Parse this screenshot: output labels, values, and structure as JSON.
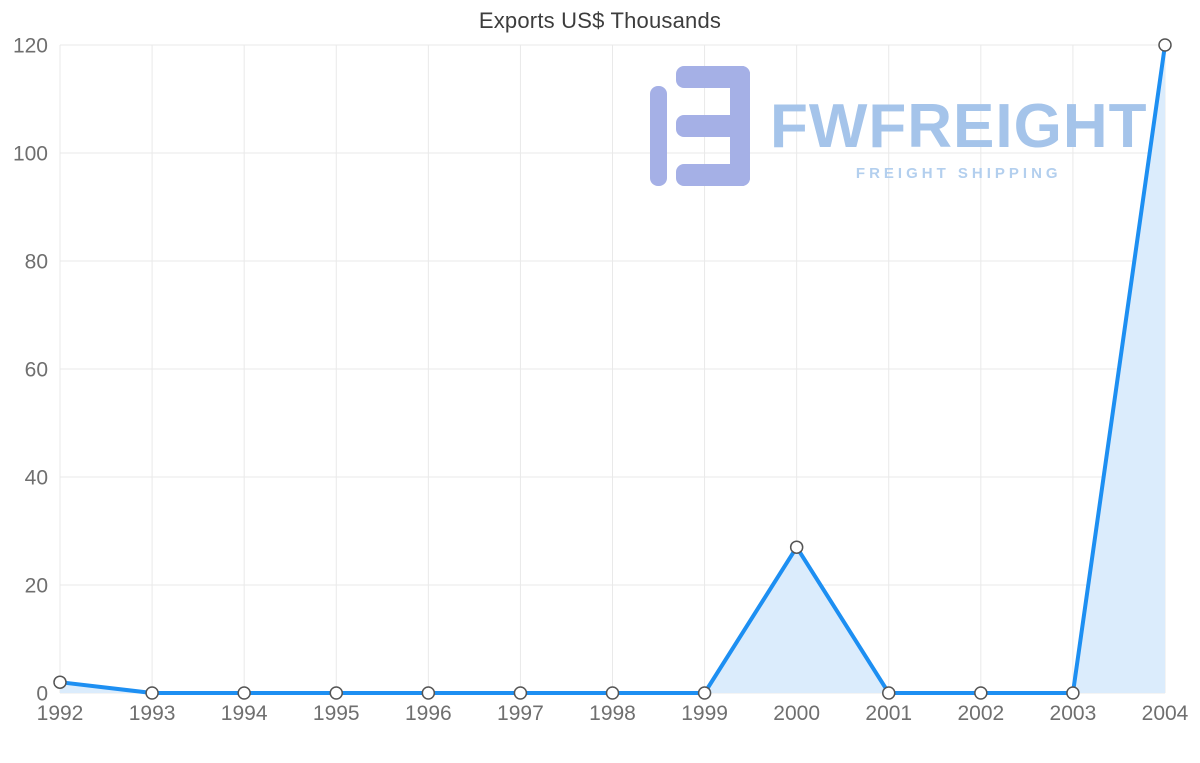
{
  "chart_data": {
    "type": "line",
    "title": "Exports US$ Thousands",
    "categories": [
      "1992",
      "1993",
      "1994",
      "1995",
      "1996",
      "1997",
      "1998",
      "1999",
      "2000",
      "2001",
      "2002",
      "2003",
      "2004"
    ],
    "series": [
      {
        "name": "Exports US$ Thousands",
        "values": [
          2,
          0,
          0,
          0,
          0,
          0,
          0,
          0,
          27,
          0,
          0,
          0,
          120
        ]
      }
    ],
    "xlabel": "",
    "ylabel": "",
    "ylim": [
      0,
      120
    ],
    "ytick_step": 20,
    "yticks": [
      0,
      20,
      40,
      60,
      80,
      100,
      120
    ],
    "grid": "on",
    "legend": "none",
    "line_color": "#1d8ff2",
    "area_color": "#dbecfc",
    "marker_fill": "#ffffff",
    "marker_stroke": "#555555",
    "grid_color": "#e9e9e9",
    "tick_label_color": "#6f6f6f",
    "title_color": "#3d3d3d"
  },
  "logo": {
    "wordmark": "FWFREIGHT",
    "tagline": "FREIGHT SHIPPING",
    "mark_color": "#a5b0e6",
    "wordmark_color": "#a5c4ea",
    "tagline_color": "#b3cfee"
  }
}
